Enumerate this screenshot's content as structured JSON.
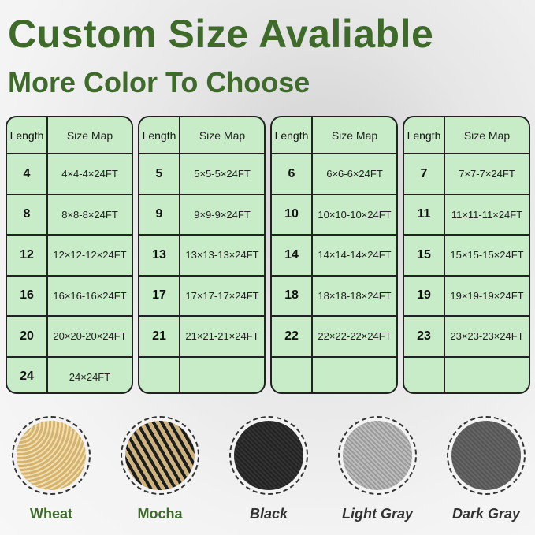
{
  "title": "Custom Size Avaliable",
  "subtitle": "More Color To Choose",
  "headers": {
    "length": "Length",
    "size": "Size Map"
  },
  "tables": [
    {
      "rows": [
        [
          "4",
          "4×4-4×24FT"
        ],
        [
          "8",
          "8×8-8×24FT"
        ],
        [
          "12",
          "12×12-12×24FT"
        ],
        [
          "16",
          "16×16-16×24FT"
        ],
        [
          "20",
          "20×20-20×24FT"
        ],
        [
          "24",
          "24×24FT"
        ]
      ]
    },
    {
      "rows": [
        [
          "5",
          "5×5-5×24FT"
        ],
        [
          "9",
          "9×9-9×24FT"
        ],
        [
          "13",
          "13×13-13×24FT"
        ],
        [
          "17",
          "17×17-17×24FT"
        ],
        [
          "21",
          "21×21-21×24FT"
        ],
        [
          "",
          ""
        ]
      ]
    },
    {
      "rows": [
        [
          "6",
          "6×6-6×24FT"
        ],
        [
          "10",
          "10×10-10×24FT"
        ],
        [
          "14",
          "14×14-14×24FT"
        ],
        [
          "18",
          "18×18-18×24FT"
        ],
        [
          "22",
          "22×22-22×24FT"
        ],
        [
          "",
          ""
        ]
      ]
    },
    {
      "rows": [
        [
          "7",
          "7×7-7×24FT"
        ],
        [
          "11",
          "11×11-11×24FT"
        ],
        [
          "15",
          "15×15-15×24FT"
        ],
        [
          "19",
          "19×19-19×24FT"
        ],
        [
          "23",
          "23×23-23×24FT"
        ],
        [
          "",
          ""
        ]
      ]
    }
  ],
  "colors": [
    {
      "name": "Wheat",
      "swatch": "#dcc184",
      "italic": false
    },
    {
      "name": "Mocha",
      "swatch": "#6b5a3a",
      "italic": false
    },
    {
      "name": "Black",
      "swatch": "#2a2a2a",
      "italic": true
    },
    {
      "name": "Light Gray",
      "swatch": "#a9a9a9",
      "italic": true
    },
    {
      "name": "Dark Gray",
      "swatch": "#5e5e5e",
      "italic": true
    }
  ],
  "accent": "#3f6b2a",
  "table_bg": "#c8ecc8"
}
